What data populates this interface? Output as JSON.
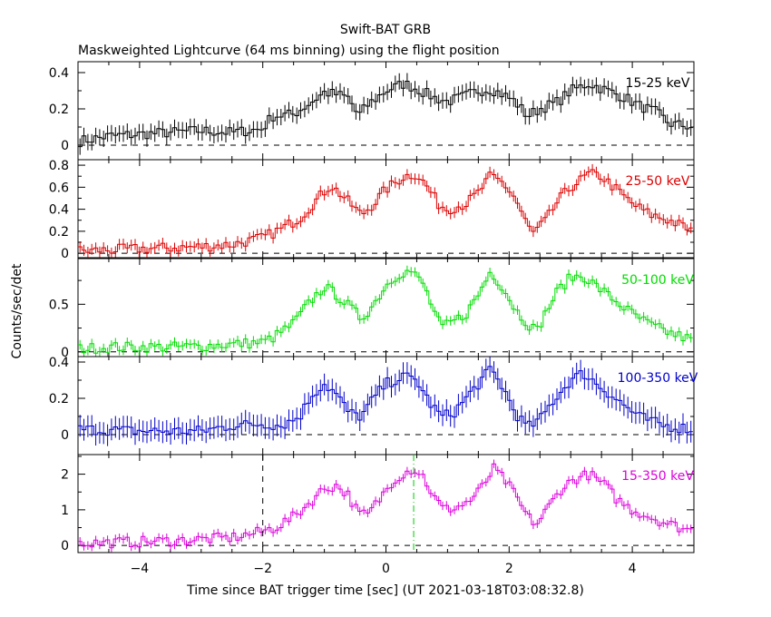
{
  "title": "Swift-BAT GRB",
  "subtitle": "Maskweighted Lightcurve (64 ms binning) using the flight position",
  "ylabel": "Counts/sec/det",
  "xlabel": "Time since BAT trigger time [sec] (UT 2021-03-18T03:08:32.8)",
  "chart_data": {
    "type": "line",
    "title": "Swift-BAT GRB",
    "subtitle": "Maskweighted Lightcurve (64 ms binning) using the flight position",
    "xlabel": "Time since BAT trigger time [sec] (UT 2021-03-18T03:08:32.8)",
    "ylabel": "Counts/sec/det",
    "xlim": [
      -5,
      5
    ],
    "x_ticks": [
      -4,
      -2,
      0,
      2,
      4
    ],
    "bin_width_s": 0.064,
    "markers": {
      "dashed_vertical_x": -2.0,
      "dashdot_vertical_x": 0.45,
      "dashdot_color": "#00cc00"
    },
    "panels": [
      {
        "name": "15-25 keV",
        "color": "#000000",
        "ylim": [
          -0.08,
          0.46
        ],
        "yticks": [
          0,
          0.2,
          0.4
        ],
        "ytick_labels": [
          "0",
          "0.2",
          "0.4"
        ],
        "err": 0.045,
        "knots": [
          [
            -5,
            0.02
          ],
          [
            -4.5,
            0.05
          ],
          [
            -4,
            0.06
          ],
          [
            -3.5,
            0.07
          ],
          [
            -3,
            0.08
          ],
          [
            -2.5,
            0.07
          ],
          [
            -2,
            0.09
          ],
          [
            -1.85,
            0.16
          ],
          [
            -1.5,
            0.17
          ],
          [
            -1.2,
            0.24
          ],
          [
            -1,
            0.29
          ],
          [
            -0.8,
            0.28
          ],
          [
            -0.6,
            0.26
          ],
          [
            -0.45,
            0.16
          ],
          [
            -0.3,
            0.22
          ],
          [
            0,
            0.3
          ],
          [
            0.3,
            0.34
          ],
          [
            0.5,
            0.31
          ],
          [
            0.8,
            0.26
          ],
          [
            1,
            0.24
          ],
          [
            1.2,
            0.26
          ],
          [
            1.5,
            0.3
          ],
          [
            1.7,
            0.31
          ],
          [
            1.9,
            0.28
          ],
          [
            2.1,
            0.24
          ],
          [
            2.3,
            0.16
          ],
          [
            2.5,
            0.2
          ],
          [
            2.8,
            0.24
          ],
          [
            3.0,
            0.3
          ],
          [
            3.3,
            0.34
          ],
          [
            3.6,
            0.3
          ],
          [
            3.9,
            0.26
          ],
          [
            4.1,
            0.22
          ],
          [
            4.4,
            0.18
          ],
          [
            4.6,
            0.12
          ],
          [
            5,
            0.1
          ]
        ]
      },
      {
        "name": "25-50 keV",
        "color": "#dd0000",
        "ylim": [
          -0.04,
          0.85
        ],
        "yticks": [
          0,
          0.2,
          0.4,
          0.6,
          0.8
        ],
        "ytick_labels": [
          "0",
          "0.2",
          "0.4",
          "0.6",
          "0.8"
        ],
        "err": 0.05,
        "knots": [
          [
            -5,
            0.02
          ],
          [
            -4.5,
            0.03
          ],
          [
            -4,
            0.04
          ],
          [
            -3.5,
            0.05
          ],
          [
            -3,
            0.06
          ],
          [
            -2.5,
            0.08
          ],
          [
            -2,
            0.14
          ],
          [
            -1.7,
            0.22
          ],
          [
            -1.4,
            0.32
          ],
          [
            -1.1,
            0.5
          ],
          [
            -0.9,
            0.62
          ],
          [
            -0.7,
            0.52
          ],
          [
            -0.4,
            0.35
          ],
          [
            -0.2,
            0.45
          ],
          [
            0,
            0.58
          ],
          [
            0.3,
            0.7
          ],
          [
            0.5,
            0.72
          ],
          [
            0.7,
            0.58
          ],
          [
            0.85,
            0.45
          ],
          [
            1.0,
            0.4
          ],
          [
            1.3,
            0.45
          ],
          [
            1.5,
            0.55
          ],
          [
            1.7,
            0.7
          ],
          [
            1.9,
            0.64
          ],
          [
            2.1,
            0.5
          ],
          [
            2.3,
            0.25
          ],
          [
            2.4,
            0.18
          ],
          [
            2.6,
            0.3
          ],
          [
            2.8,
            0.48
          ],
          [
            3.0,
            0.6
          ],
          [
            3.3,
            0.72
          ],
          [
            3.5,
            0.7
          ],
          [
            3.8,
            0.55
          ],
          [
            4.0,
            0.45
          ],
          [
            4.3,
            0.35
          ],
          [
            4.6,
            0.3
          ],
          [
            5,
            0.2
          ]
        ]
      },
      {
        "name": "50-100 keV",
        "color": "#00dd00",
        "ylim": [
          -0.05,
          0.98
        ],
        "yticks": [
          0,
          0.5
        ],
        "ytick_labels": [
          "0",
          "0.5"
        ],
        "err": 0.05,
        "knots": [
          [
            -5,
            0.03
          ],
          [
            -4.5,
            0.05
          ],
          [
            -4,
            0.05
          ],
          [
            -3.5,
            0.05
          ],
          [
            -3,
            0.06
          ],
          [
            -2.5,
            0.08
          ],
          [
            -2,
            0.1
          ],
          [
            -1.8,
            0.16
          ],
          [
            -1.5,
            0.3
          ],
          [
            -1.2,
            0.55
          ],
          [
            -1,
            0.68
          ],
          [
            -0.8,
            0.6
          ],
          [
            -0.6,
            0.48
          ],
          [
            -0.4,
            0.35
          ],
          [
            -0.2,
            0.5
          ],
          [
            0,
            0.7
          ],
          [
            0.2,
            0.82
          ],
          [
            0.4,
            0.85
          ],
          [
            0.6,
            0.72
          ],
          [
            0.8,
            0.4
          ],
          [
            0.9,
            0.25
          ],
          [
            1.1,
            0.32
          ],
          [
            1.3,
            0.4
          ],
          [
            1.5,
            0.6
          ],
          [
            1.7,
            0.85
          ],
          [
            1.9,
            0.68
          ],
          [
            2.1,
            0.45
          ],
          [
            2.3,
            0.3
          ],
          [
            2.45,
            0.22
          ],
          [
            2.6,
            0.42
          ],
          [
            2.8,
            0.65
          ],
          [
            3.0,
            0.78
          ],
          [
            3.2,
            0.8
          ],
          [
            3.4,
            0.7
          ],
          [
            3.7,
            0.55
          ],
          [
            4,
            0.4
          ],
          [
            4.3,
            0.28
          ],
          [
            4.6,
            0.2
          ],
          [
            5,
            0.12
          ]
        ]
      },
      {
        "name": "100-350 keV",
        "color": "#0000cc",
        "ylim": [
          -0.11,
          0.43
        ],
        "yticks": [
          0,
          0.2,
          0.4
        ],
        "ytick_labels": [
          "0",
          "0.2",
          "0.4"
        ],
        "err": 0.06,
        "knots": [
          [
            -5,
            0.03
          ],
          [
            -4,
            0.02
          ],
          [
            -3,
            0.02
          ],
          [
            -2.5,
            0.05
          ],
          [
            -2,
            0.06
          ],
          [
            -1.7,
            0.05
          ],
          [
            -1.4,
            0.1
          ],
          [
            -1.2,
            0.22
          ],
          [
            -1,
            0.28
          ],
          [
            -0.8,
            0.22
          ],
          [
            -0.6,
            0.12
          ],
          [
            -0.4,
            0.1
          ],
          [
            -0.2,
            0.2
          ],
          [
            0,
            0.28
          ],
          [
            0.3,
            0.32
          ],
          [
            0.5,
            0.3
          ],
          [
            0.7,
            0.18
          ],
          [
            0.9,
            0.1
          ],
          [
            1.1,
            0.12
          ],
          [
            1.3,
            0.2
          ],
          [
            1.5,
            0.28
          ],
          [
            1.7,
            0.36
          ],
          [
            1.9,
            0.26
          ],
          [
            2.1,
            0.12
          ],
          [
            2.3,
            0.04
          ],
          [
            2.5,
            0.08
          ],
          [
            2.7,
            0.18
          ],
          [
            3.0,
            0.3
          ],
          [
            3.2,
            0.34
          ],
          [
            3.5,
            0.26
          ],
          [
            3.8,
            0.18
          ],
          [
            4.1,
            0.1
          ],
          [
            4.5,
            0.05
          ],
          [
            5,
            0.03
          ]
        ]
      },
      {
        "name": "15-350 keV",
        "color": "#dd00dd",
        "ylim": [
          -0.2,
          2.55
        ],
        "yticks": [
          0,
          1,
          2
        ],
        "ytick_labels": [
          "0",
          "1",
          "2"
        ],
        "err": 0.12,
        "knots": [
          [
            -5,
            0.06
          ],
          [
            -4.5,
            0.08
          ],
          [
            -4,
            0.1
          ],
          [
            -3.5,
            0.13
          ],
          [
            -3,
            0.17
          ],
          [
            -2.5,
            0.22
          ],
          [
            -2.1,
            0.35
          ],
          [
            -1.8,
            0.5
          ],
          [
            -1.5,
            0.8
          ],
          [
            -1.3,
            1.1
          ],
          [
            -1.0,
            1.6
          ],
          [
            -0.8,
            1.68
          ],
          [
            -0.6,
            1.4
          ],
          [
            -0.45,
            0.9
          ],
          [
            -0.3,
            0.85
          ],
          [
            -0.1,
            1.3
          ],
          [
            0.1,
            1.8
          ],
          [
            0.3,
            2.05
          ],
          [
            0.45,
            2.15
          ],
          [
            0.6,
            1.95
          ],
          [
            0.8,
            1.3
          ],
          [
            0.95,
            1.0
          ],
          [
            1.2,
            1.1
          ],
          [
            1.4,
            1.3
          ],
          [
            1.55,
            1.6
          ],
          [
            1.75,
            2.15
          ],
          [
            1.95,
            1.8
          ],
          [
            2.1,
            1.4
          ],
          [
            2.3,
            0.8
          ],
          [
            2.45,
            0.6
          ],
          [
            2.65,
            1.1
          ],
          [
            2.85,
            1.6
          ],
          [
            3.05,
            1.85
          ],
          [
            3.3,
            2.0
          ],
          [
            3.55,
            1.7
          ],
          [
            3.75,
            1.3
          ],
          [
            4.0,
            1.0
          ],
          [
            4.3,
            0.8
          ],
          [
            4.6,
            0.6
          ],
          [
            5,
            0.4
          ]
        ]
      }
    ]
  }
}
